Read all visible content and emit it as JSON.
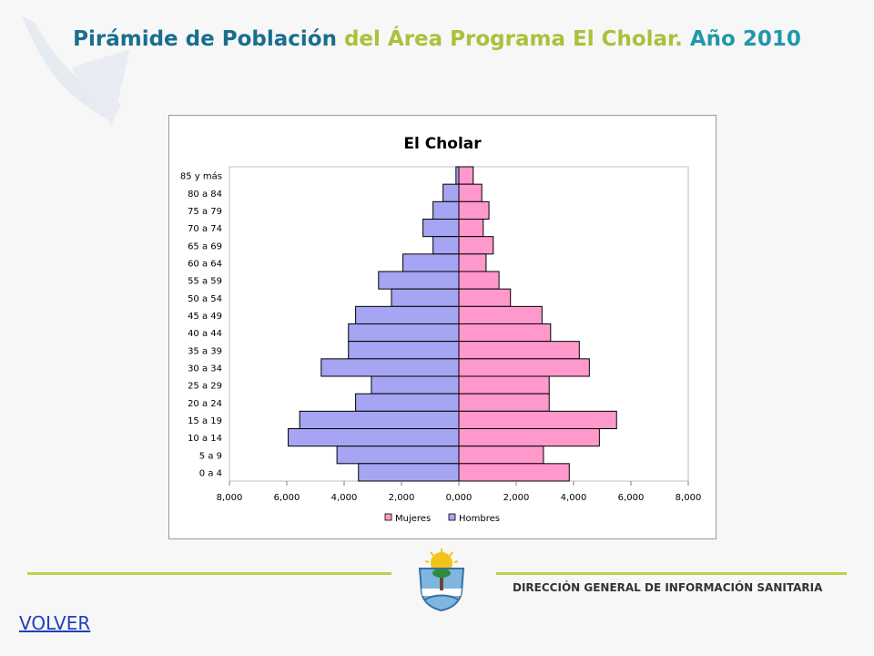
{
  "slide": {
    "title_part1": "Pirámide de Población ",
    "title_part2": "del Área Programa El Cholar. ",
    "title_part3": "Año 2010",
    "footer_text": "DIRECCIÓN GENERAL DE INFORMACIÓN SANITARIA",
    "volver_label": "VOLVER"
  },
  "colors": {
    "hombres": "#a5a5f3",
    "mujeres": "#ff99cc",
    "title_blue": "#1a6e8e",
    "title_green": "#a8c23a",
    "footer_line": "#b8d44a",
    "link": "#1f3fbf"
  },
  "chart_data": {
    "type": "bar",
    "orientation": "horizontal-pyramid",
    "title": "El Cholar",
    "categories": [
      "85 y más",
      "80 a 84",
      "75 a 79",
      "70 a 74",
      "65 a 69",
      "60 a 64",
      "55 a 59",
      "50 a 54",
      "45 a 49",
      "40 a 44",
      "35 a 39",
      "30 a 34",
      "25 a 29",
      "20 a 24",
      "15 a 19",
      "10 a 14",
      "5 a 9",
      "0 a 4"
    ],
    "series": [
      {
        "name": "Mujeres",
        "side": "right",
        "values": [
          500,
          800,
          1050,
          850,
          1200,
          950,
          1400,
          1800,
          2900,
          3200,
          4200,
          4550,
          3150,
          3150,
          5500,
          4900,
          2950,
          3850
        ]
      },
      {
        "name": "Hombres",
        "side": "left",
        "values": [
          100,
          550,
          900,
          1250,
          900,
          1950,
          2800,
          2350,
          3600,
          3850,
          3850,
          4800,
          3050,
          3600,
          5550,
          5950,
          4250,
          3500
        ]
      }
    ],
    "xlim": [
      -8000,
      8000
    ],
    "xticks": [
      -8000,
      -6000,
      -4000,
      -2000,
      0,
      2000,
      4000,
      6000,
      8000
    ],
    "xtick_labels": [
      "8,000",
      "6,000",
      "4,000",
      "2,000",
      "0,000",
      "2,000",
      "4,000",
      "6,000",
      "8,000"
    ],
    "legend": [
      "Mujeres",
      "Hombres"
    ],
    "legend_position": "bottom",
    "grid": false
  }
}
